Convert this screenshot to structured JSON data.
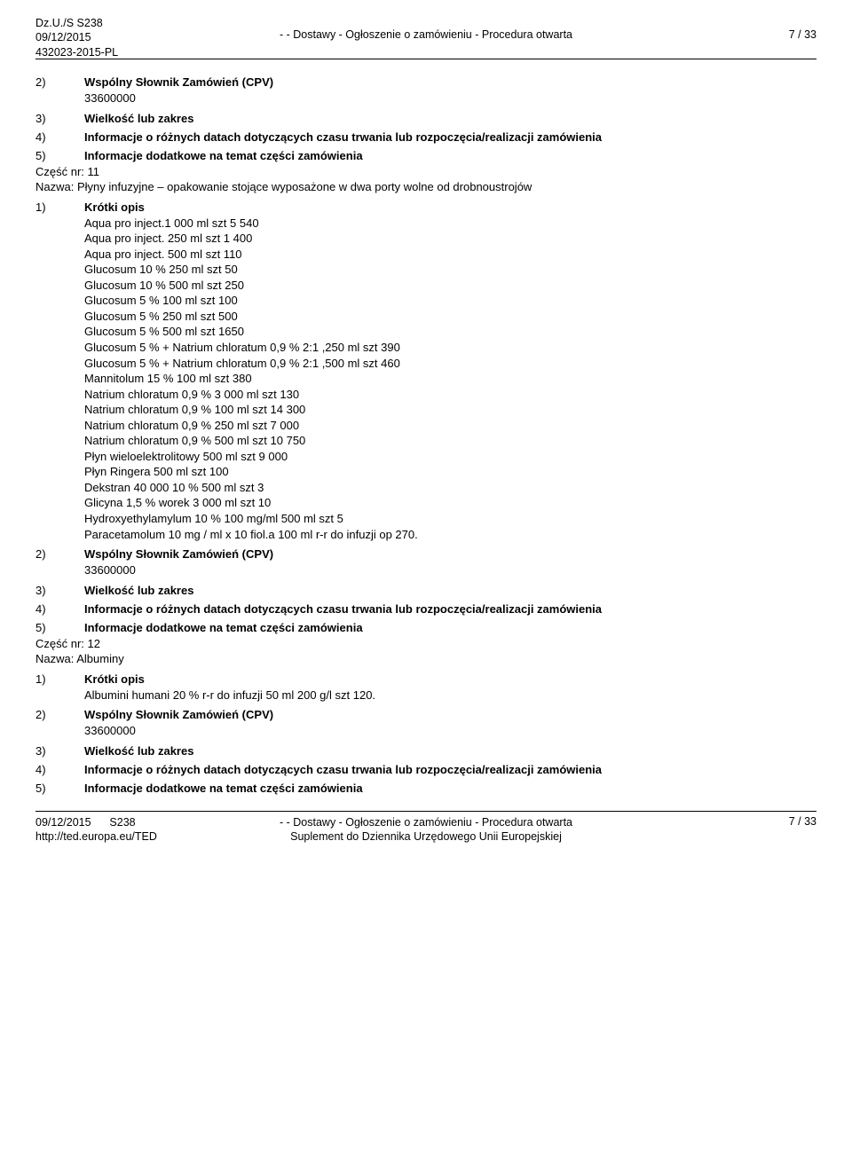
{
  "header": {
    "left_line1": "Dz.U./S S238",
    "left_line2": "09/12/2015",
    "left_line3": "432023-2015-PL",
    "center": "- - Dostawy - Ogłoszenie o zamówieniu - Procedura otwarta",
    "right": "7 / 33"
  },
  "section_top": {
    "n2": "2)",
    "n2_label": "Wspólny Słownik Zamówień (CPV)",
    "n2_value": "33600000",
    "n3": "3)",
    "n3_label": "Wielkość lub zakres",
    "n4": "4)",
    "n4_label": "Informacje o różnych datach dotyczących czasu trwania lub rozpoczęcia/realizacji zamówienia",
    "n5": "5)",
    "n5_label": "Informacje dodatkowe na temat części zamówienia"
  },
  "part11": {
    "part_line": "Część nr: 11",
    "name_line": "Nazwa: Płyny infuzyjne – opakowanie stojące wyposażone w dwa porty wolne od drobnoustrojów",
    "n1": "1)",
    "n1_label": "Krótki opis",
    "lines": [
      "Aqua pro inject.1 000 ml szt 5 540",
      "Aqua pro inject. 250 ml szt 1 400",
      "Aqua pro inject. 500 ml szt 110",
      "Glucosum 10 % 250 ml szt 50",
      "Glucosum 10 % 500 ml szt 250",
      "Glucosum 5 % 100 ml szt 100",
      "Glucosum 5 % 250 ml szt 500",
      "Glucosum 5 % 500 ml szt 1650",
      "Glucosum 5 % + Natrium chloratum 0,9 % 2:1 ,250 ml szt 390",
      "Glucosum 5 % + Natrium chloratum 0,9 % 2:1 ,500 ml szt 460",
      "Mannitolum 15 % 100 ml szt 380",
      "Natrium chloratum 0,9 % 3 000 ml szt 130",
      "Natrium chloratum 0,9 % 100 ml szt 14 300",
      "Natrium chloratum 0,9 % 250 ml szt 7 000",
      "Natrium chloratum 0,9 % 500 ml szt 10 750",
      "Płyn wieloelektrolitowy 500 ml szt 9 000",
      "Płyn Ringera 500 ml szt 100",
      "Dekstran 40 000 10 % 500 ml szt 3",
      "Glicyna 1,5 % worek 3 000 ml szt 10",
      "Hydroxyethylamylum 10 % 100 mg/ml 500 ml szt 5",
      "Paracetamolum 10 mg / ml x 10 fiol.a 100 ml r-r do infuzji op 270."
    ],
    "n2": "2)",
    "n2_label": "Wspólny Słownik Zamówień (CPV)",
    "n2_value": "33600000",
    "n3": "3)",
    "n3_label": "Wielkość lub zakres",
    "n4": "4)",
    "n4_label": "Informacje o różnych datach dotyczących czasu trwania lub rozpoczęcia/realizacji zamówienia",
    "n5": "5)",
    "n5_label": "Informacje dodatkowe na temat części zamówienia"
  },
  "part12": {
    "part_line": "Część nr: 12",
    "name_line": "Nazwa: Albuminy",
    "n1": "1)",
    "n1_label": "Krótki opis",
    "line1": "Albumini humani 20 % r-r do infuzji 50 ml 200 g/l szt 120.",
    "n2": "2)",
    "n2_label": "Wspólny Słownik Zamówień (CPV)",
    "n2_value": "33600000",
    "n3": "3)",
    "n3_label": "Wielkość lub zakres",
    "n4": "4)",
    "n4_label": "Informacje o różnych datach dotyczących czasu trwania lub rozpoczęcia/realizacji zamówienia",
    "n5": "5)",
    "n5_label": "Informacje dodatkowe na temat części zamówienia"
  },
  "footer": {
    "left_line1": "09/12/2015",
    "left_line1b": "S238",
    "left_line2": "http://ted.europa.eu/TED",
    "center_line1": "- - Dostawy - Ogłoszenie o zamówieniu - Procedura otwarta",
    "center_line2": "Suplement do Dziennika Urzędowego Unii Europejskiej",
    "right": "7 / 33"
  }
}
